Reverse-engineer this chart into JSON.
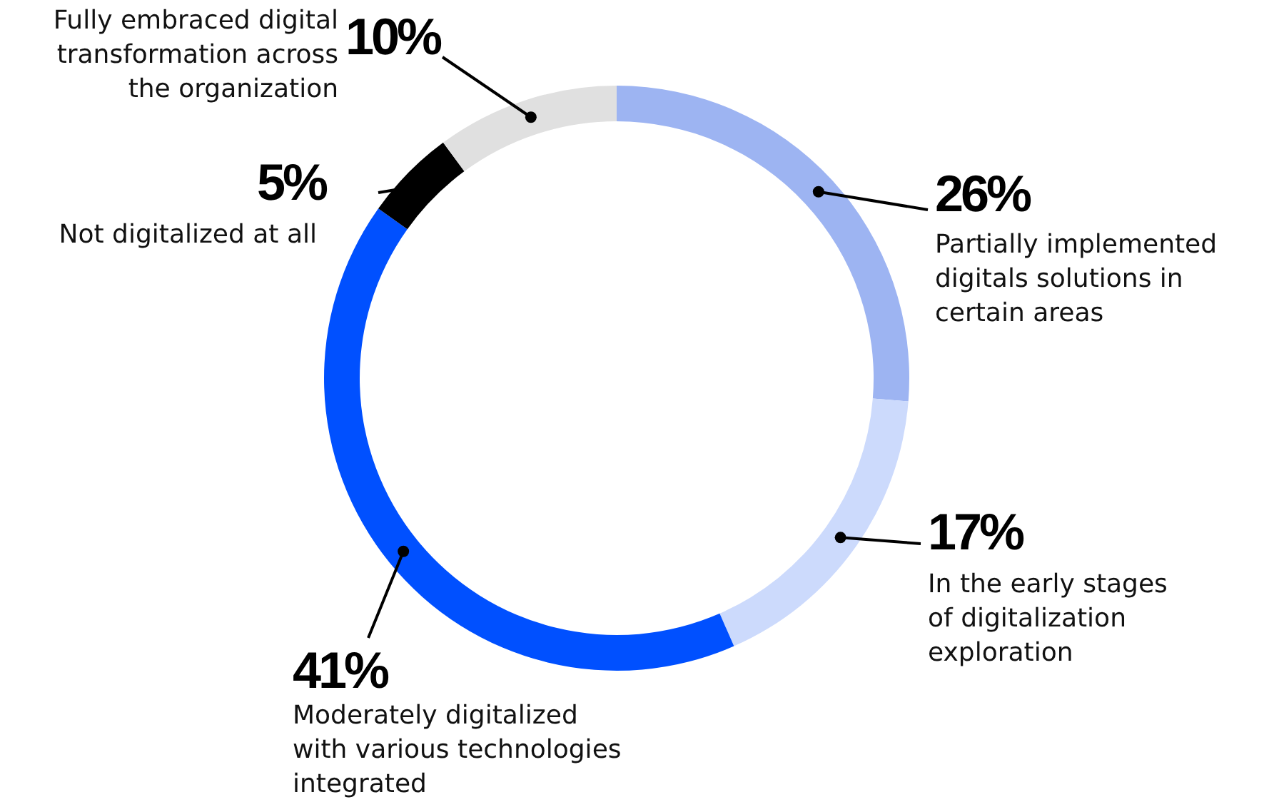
{
  "chart_data": {
    "type": "donut",
    "categories": [
      "Partially implemented digitals solutions in certain areas",
      "In the early stages of digitalization exploration",
      "Moderately digitalized with various technologies integrated",
      "Not digitalized at all",
      "Fully embraced digital transformation across the organization"
    ],
    "values": [
      26,
      17,
      41,
      5,
      10
    ],
    "colors": [
      "#9db4f2",
      "#ccdafc",
      "#0050ff",
      "#000000",
      "#e0e0e0"
    ],
    "value_labels": [
      "26%",
      "17%",
      "41%",
      "5%",
      "10%"
    ]
  }
}
